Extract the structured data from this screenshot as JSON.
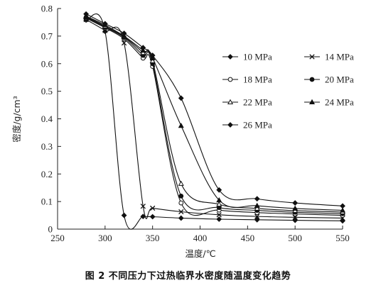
{
  "caption": "图 2   不同压力下过热临界水密度随温度变化趋势",
  "chart_data": {
    "type": "line",
    "xlabel": "温度/℃",
    "ylabel": "密度/g/cm³",
    "xlim": [
      250,
      550
    ],
    "ylim": [
      0,
      0.8
    ],
    "xticks": [
      250,
      300,
      350,
      400,
      450,
      500,
      550
    ],
    "yticks": [
      0,
      0.1,
      0.2,
      0.3,
      0.4,
      0.5,
      0.6,
      0.7,
      0.8
    ],
    "xtick_labels": [
      "250",
      "300",
      "350",
      "400",
      "450",
      "500",
      "550"
    ],
    "ytick_labels": [
      "0",
      "0.1",
      "0.2",
      "0.3",
      "0.4",
      "0.5",
      "0.6",
      "0.7",
      "0.8"
    ],
    "grid": false,
    "legend_position": "right",
    "series": [
      {
        "name": "10 MPa",
        "marker": "diamond",
        "x": [
          280,
          300,
          320,
          340,
          350,
          380,
          420,
          460,
          500,
          550
        ],
        "y": [
          0.758,
          0.717,
          0.05,
          0.046,
          0.045,
          0.04,
          0.036,
          0.034,
          0.032,
          0.03
        ]
      },
      {
        "name": "14 MPa",
        "marker": "x",
        "x": [
          280,
          300,
          320,
          340,
          350,
          380,
          420,
          460,
          500,
          550
        ],
        "y": [
          0.76,
          0.72,
          0.675,
          0.083,
          0.076,
          0.063,
          0.052,
          0.046,
          0.043,
          0.04
        ]
      },
      {
        "name": "18 MPa",
        "marker": "circle-open",
        "x": [
          280,
          300,
          320,
          340,
          350,
          380,
          420,
          460,
          500,
          550
        ],
        "y": [
          0.765,
          0.73,
          0.69,
          0.62,
          0.59,
          0.095,
          0.069,
          0.06,
          0.055,
          0.05
        ]
      },
      {
        "name": "20 MPa",
        "marker": "circle-filled",
        "x": [
          280,
          300,
          320,
          340,
          350,
          380,
          420,
          460,
          500,
          550
        ],
        "y": [
          0.768,
          0.733,
          0.695,
          0.63,
          0.6,
          0.12,
          0.078,
          0.068,
          0.061,
          0.056
        ]
      },
      {
        "name": "22 MPa",
        "marker": "triangle-open",
        "x": [
          280,
          300,
          320,
          340,
          350,
          380,
          420,
          460,
          500,
          550
        ],
        "y": [
          0.77,
          0.736,
          0.698,
          0.64,
          0.61,
          0.165,
          0.09,
          0.075,
          0.067,
          0.062
        ]
      },
      {
        "name": "24 MPa",
        "marker": "triangle-filled",
        "x": [
          280,
          300,
          320,
          340,
          350,
          380,
          420,
          460,
          500,
          550
        ],
        "y": [
          0.772,
          0.74,
          0.7,
          0.648,
          0.62,
          0.375,
          0.105,
          0.085,
          0.075,
          0.068
        ]
      },
      {
        "name": "26 MPa",
        "marker": "diamond",
        "x": [
          280,
          300,
          320,
          340,
          350,
          380,
          420,
          460,
          500,
          550
        ],
        "y": [
          0.78,
          0.745,
          0.71,
          0.658,
          0.63,
          0.475,
          0.142,
          0.11,
          0.095,
          0.084
        ]
      }
    ]
  }
}
